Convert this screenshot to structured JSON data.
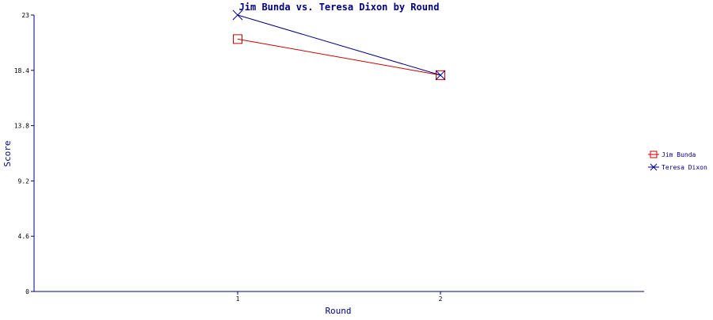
{
  "chart_data": {
    "type": "line",
    "title": "Jim Bunda vs. Teresa Dixon by Round",
    "xlabel": "Round",
    "ylabel": "Score",
    "x": [
      1,
      2
    ],
    "x_tick_labels": [
      "1",
      "2"
    ],
    "y_ticks": [
      0,
      4.6,
      9.2,
      13.8,
      18.4,
      23
    ],
    "y_tick_labels": [
      "0",
      "4.6",
      "9.2",
      "13.8",
      "18.4",
      "23"
    ],
    "ylim": [
      0,
      23
    ],
    "grid": false,
    "legend_position": "right",
    "series": [
      {
        "name": "Jim Bunda",
        "values": [
          21,
          18
        ],
        "color": "#cc0000",
        "marker": "square"
      },
      {
        "name": "Teresa Dixon",
        "values": [
          23,
          18
        ],
        "color": "#000080",
        "marker": "x"
      }
    ]
  }
}
